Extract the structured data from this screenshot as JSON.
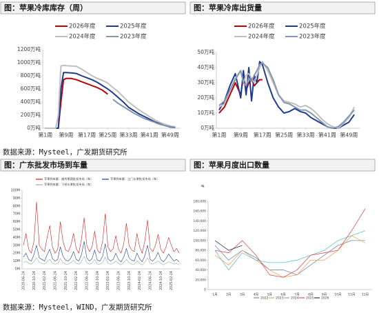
{
  "sources": [
    "数据来源：Mysteel，广发期货研究所",
    "数据来源：Mysteel，WIND，广发期货研究所"
  ],
  "chart_data": [
    {
      "type": "line",
      "title": "图：苹果冷库库存（周）",
      "legend": "top",
      "x": [
        1,
        4,
        5,
        6,
        7,
        8,
        9,
        11,
        13,
        15,
        17,
        19,
        21,
        23,
        25,
        27,
        29,
        31,
        33,
        35,
        37,
        39,
        41,
        43,
        45,
        47,
        49,
        51
      ],
      "xlim": [
        0,
        53
      ],
      "xticks": [
        {
          "value": 1,
          "label": "第1周"
        },
        {
          "value": 9,
          "label": "第9周"
        },
        {
          "value": 17,
          "label": "第17周"
        },
        {
          "value": 25,
          "label": "第25周"
        },
        {
          "value": 33,
          "label": "第33周"
        },
        {
          "value": 41,
          "label": "第41周"
        },
        {
          "value": 49,
          "label": "第49周"
        }
      ],
      "ylim": [
        0,
        1200
      ],
      "yticks": [
        {
          "value": 0,
          "label": "0万吨"
        },
        {
          "value": 200,
          "label": "200万吨"
        },
        {
          "value": 400,
          "label": "400万吨"
        },
        {
          "value": 600,
          "label": "600万吨"
        },
        {
          "value": 800,
          "label": "800万吨"
        },
        {
          "value": 1000,
          "label": "1000万吨"
        },
        {
          "value": 1200,
          "label": "1200万吨"
        }
      ],
      "series": [
        {
          "name": "2026年度",
          "color": "#c00000",
          "values": [
            0,
            0,
            0,
            0,
            400,
            740,
            760,
            760,
            740,
            710,
            680,
            650,
            620,
            580,
            520,
            null,
            null,
            null,
            null,
            null,
            null,
            null,
            null,
            null,
            null,
            null,
            null,
            null
          ]
        },
        {
          "name": "2025年度",
          "color": "#1f3a8f",
          "values": [
            0,
            0,
            0,
            0,
            600,
            850,
            850,
            845,
            835,
            800,
            770,
            740,
            700,
            650,
            600,
            540,
            470,
            400,
            320,
            270,
            220,
            180,
            140,
            100,
            70,
            40,
            20,
            10
          ]
        },
        {
          "name": "2024年度",
          "color": "#bfbfbf",
          "values": [
            0,
            0,
            0,
            200,
            950,
            960,
            955,
            950,
            945,
            900,
            850,
            800,
            760,
            730,
            690,
            620,
            560,
            480,
            400,
            340,
            280,
            230,
            180,
            130,
            90,
            60,
            35,
            20
          ]
        },
        {
          "name": "2023年度",
          "color": "#8497b0",
          "values": [
            null,
            null,
            null,
            null,
            null,
            null,
            null,
            null,
            null,
            null,
            null,
            null,
            null,
            null,
            null,
            440,
            380,
            330,
            280,
            230,
            190,
            150,
            120,
            90,
            60,
            40,
            25,
            15
          ]
        }
      ]
    },
    {
      "type": "line",
      "title": "图：苹果冷库出货量",
      "legend": "top",
      "x": [
        1,
        3,
        5,
        7,
        9,
        10,
        11,
        12,
        13,
        14,
        15,
        16,
        17,
        19,
        21,
        23,
        25,
        27,
        29,
        31,
        33,
        35,
        37,
        39,
        41,
        43,
        45,
        47,
        49,
        51
      ],
      "xlim": [
        0,
        53
      ],
      "xticks": [
        {
          "value": 1,
          "label": "第1周"
        },
        {
          "value": 9,
          "label": "第9周"
        },
        {
          "value": 17,
          "label": "第17周"
        },
        {
          "value": 25,
          "label": "第25周"
        },
        {
          "value": 33,
          "label": "第33周"
        },
        {
          "value": 41,
          "label": "第41周"
        },
        {
          "value": 49,
          "label": "第49周"
        }
      ],
      "ylim": [
        0,
        50
      ],
      "yticks": [
        {
          "value": 0,
          "label": "0万吨"
        },
        {
          "value": 10,
          "label": "10万吨"
        },
        {
          "value": 20,
          "label": "20万吨"
        },
        {
          "value": 30,
          "label": "30万吨"
        },
        {
          "value": 40,
          "label": "40万吨"
        },
        {
          "value": 50,
          "label": "50万吨"
        }
      ],
      "series": [
        {
          "name": "2026年度",
          "color": "#c00000",
          "values": [
            10,
            14,
            22,
            30,
            22,
            34,
            25,
            30,
            33,
            28,
            30,
            32,
            32,
            null,
            null,
            null,
            null,
            null,
            null,
            null,
            null,
            null,
            null,
            null,
            null,
            null,
            null,
            null,
            null,
            null
          ]
        },
        {
          "name": "2025年度",
          "color": "#1f3a8f",
          "values": [
            12,
            18,
            28,
            36,
            20,
            38,
            22,
            40,
            18,
            35,
            30,
            44,
            42,
            30,
            20,
            14,
            10,
            11,
            13,
            11,
            10,
            7,
            5,
            3,
            1,
            0,
            0,
            2,
            4,
            9
          ]
        },
        {
          "name": "2024年度",
          "color": "#bfbfbf",
          "values": [
            14,
            16,
            25,
            33,
            38,
            30,
            35,
            36,
            33,
            30,
            35,
            40,
            44,
            38,
            30,
            22,
            18,
            17,
            16,
            14,
            15,
            13,
            10,
            6,
            3,
            1,
            0,
            3,
            7,
            14
          ]
        },
        {
          "name": "2023年度",
          "color": "#8497b0",
          "values": [
            15,
            18,
            25,
            32,
            38,
            30,
            28,
            33,
            31,
            35,
            38,
            42,
            43,
            40,
            32,
            22,
            17,
            16,
            14,
            12,
            12,
            10,
            7,
            4,
            1,
            0,
            1,
            4,
            8,
            12
          ]
        }
      ]
    },
    {
      "type": "line",
      "title": "图：广东批发市场到车量",
      "legend": "top",
      "categories": [
        "2020-06-24",
        null,
        null,
        null,
        "2020-10-24",
        null,
        null,
        null,
        "2021-02-24",
        null,
        null,
        null,
        "2021-06-24",
        null,
        null,
        null,
        "2021-10-24",
        null,
        null,
        null,
        "2022-02-24",
        null,
        null,
        null,
        "2022-06-24",
        null,
        null,
        null,
        "2022-10-24",
        null,
        null,
        null,
        "2023-02-24",
        null,
        null,
        null,
        "2023-06-24",
        null,
        null,
        null,
        "2023-10-24",
        null,
        null,
        null,
        "2024-02-24",
        null,
        null,
        null,
        "2024-06-24",
        null,
        null,
        null,
        "2024-10-24",
        null,
        null,
        null,
        "2025-02-24",
        null,
        null,
        null
      ],
      "ylim": [
        0,
        100
      ],
      "yticks": [
        {
          "value": 0,
          "label": "0M"
        },
        {
          "value": 10,
          "label": "10M"
        },
        {
          "value": 20,
          "label": "20M"
        },
        {
          "value": 30,
          "label": "30M"
        },
        {
          "value": 40,
          "label": "40M"
        },
        {
          "value": 50,
          "label": "50M"
        },
        {
          "value": 60,
          "label": "60M"
        },
        {
          "value": 70,
          "label": "70M"
        },
        {
          "value": 80,
          "label": "80M"
        },
        {
          "value": 90,
          "label": "90M"
        },
        {
          "value": 100,
          "label": "100M"
        }
      ],
      "series": [
        {
          "name": "苹果到车量：越秀果蔬批发市场（车）",
          "color": "#d7191c",
          "values": [
            30,
            45,
            25,
            20,
            35,
            85,
            30,
            25,
            22,
            40,
            55,
            28,
            20,
            25,
            60,
            35,
            24,
            22,
            30,
            45,
            26,
            20,
            38,
            65,
            30,
            22,
            28,
            48,
            24,
            20,
            35,
            70,
            28,
            22,
            26,
            42,
            25,
            20,
            32,
            58,
            30,
            24,
            22,
            45,
            28,
            20,
            36,
            62,
            26,
            22,
            30,
            44,
            25,
            20,
            28,
            40,
            30,
            22,
            26,
            20
          ]
        },
        {
          "name": "苹果到车量：江门水果批发市场（车）",
          "color": "#1f3a8f",
          "values": [
            15,
            20,
            12,
            10,
            18,
            30,
            14,
            12,
            10,
            18,
            25,
            13,
            10,
            12,
            28,
            16,
            11,
            10,
            14,
            22,
            12,
            10,
            18,
            35,
            14,
            10,
            13,
            24,
            11,
            10,
            16,
            32,
            13,
            10,
            12,
            20,
            12,
            9,
            15,
            26,
            14,
            11,
            10,
            20,
            13,
            9,
            17,
            30,
            12,
            10,
            14,
            21,
            12,
            9,
            13,
            19,
            14,
            10,
            12,
            9
          ]
        },
        {
          "name": "苹果到车量：下桥水果批发市场（车）",
          "color": "#a6a6a6",
          "values": [
            8,
            10,
            7,
            6,
            9,
            14,
            8,
            7,
            6,
            9,
            12,
            7,
            6,
            7,
            13,
            8,
            6,
            6,
            8,
            11,
            7,
            6,
            9,
            16,
            8,
            6,
            7,
            12,
            6,
            6,
            8,
            15,
            7,
            6,
            7,
            10,
            7,
            5,
            8,
            12,
            8,
            6,
            6,
            10,
            7,
            5,
            9,
            14,
            7,
            6,
            8,
            10,
            7,
            5,
            7,
            9,
            8,
            6,
            7,
            5
          ]
        }
      ]
    },
    {
      "type": "line",
      "title": "图：苹果月度出口数量",
      "legend": "bottom",
      "y_label": "吨",
      "categories": [
        "1月",
        "2月",
        "3月",
        "4月",
        "5月",
        "6月",
        "7月",
        "8月",
        "9月",
        "10月",
        "11月",
        "12月"
      ],
      "ylim": [
        0,
        180000
      ],
      "yticks": [
        0,
        {
          "value": 20000,
          "label": "20,000"
        },
        {
          "value": 40000,
          "label": "40,000"
        },
        {
          "value": 60000,
          "label": "60,000"
        },
        {
          "value": 80000,
          "label": "80,000"
        },
        {
          "value": 100000,
          "label": "100,000"
        },
        {
          "value": 120000,
          "label": "120,000"
        },
        {
          "value": 140000,
          "label": "140,000"
        },
        {
          "value": 160000,
          "label": "160,000"
        },
        {
          "value": 180000,
          "label": "180,000"
        }
      ],
      "series": [
        {
          "name": "2022",
          "color": "#6f8fb8",
          "values": [
            90000,
            60000,
            80000,
            65000,
            40000,
            40000,
            30000,
            50000,
            70000,
            90000,
            100000,
            100000
          ]
        },
        {
          "name": "2023",
          "color": "#f4a460",
          "values": [
            70000,
            50000,
            80000,
            60000,
            40000,
            25000,
            30000,
            60000,
            60000,
            80000,
            110000,
            95000
          ]
        },
        {
          "name": "2024",
          "color": "#5fc3c8",
          "values": [
            80000,
            40000,
            75000,
            60000,
            55000,
            55000,
            60000,
            70000,
            80000,
            100000,
            110000,
            120000
          ]
        },
        {
          "name": "2025",
          "color": "#e05050",
          "values": [
            80000,
            75000,
            100000,
            70000,
            30000,
            25000,
            40000,
            70000,
            75000,
            80000,
            120000,
            165000
          ]
        },
        {
          "name": "2026",
          "color": "#1f3a6e",
          "values": [
            100000,
            80000,
            90000,
            null,
            null,
            null,
            null,
            null,
            null,
            null,
            null,
            null
          ]
        }
      ]
    }
  ]
}
